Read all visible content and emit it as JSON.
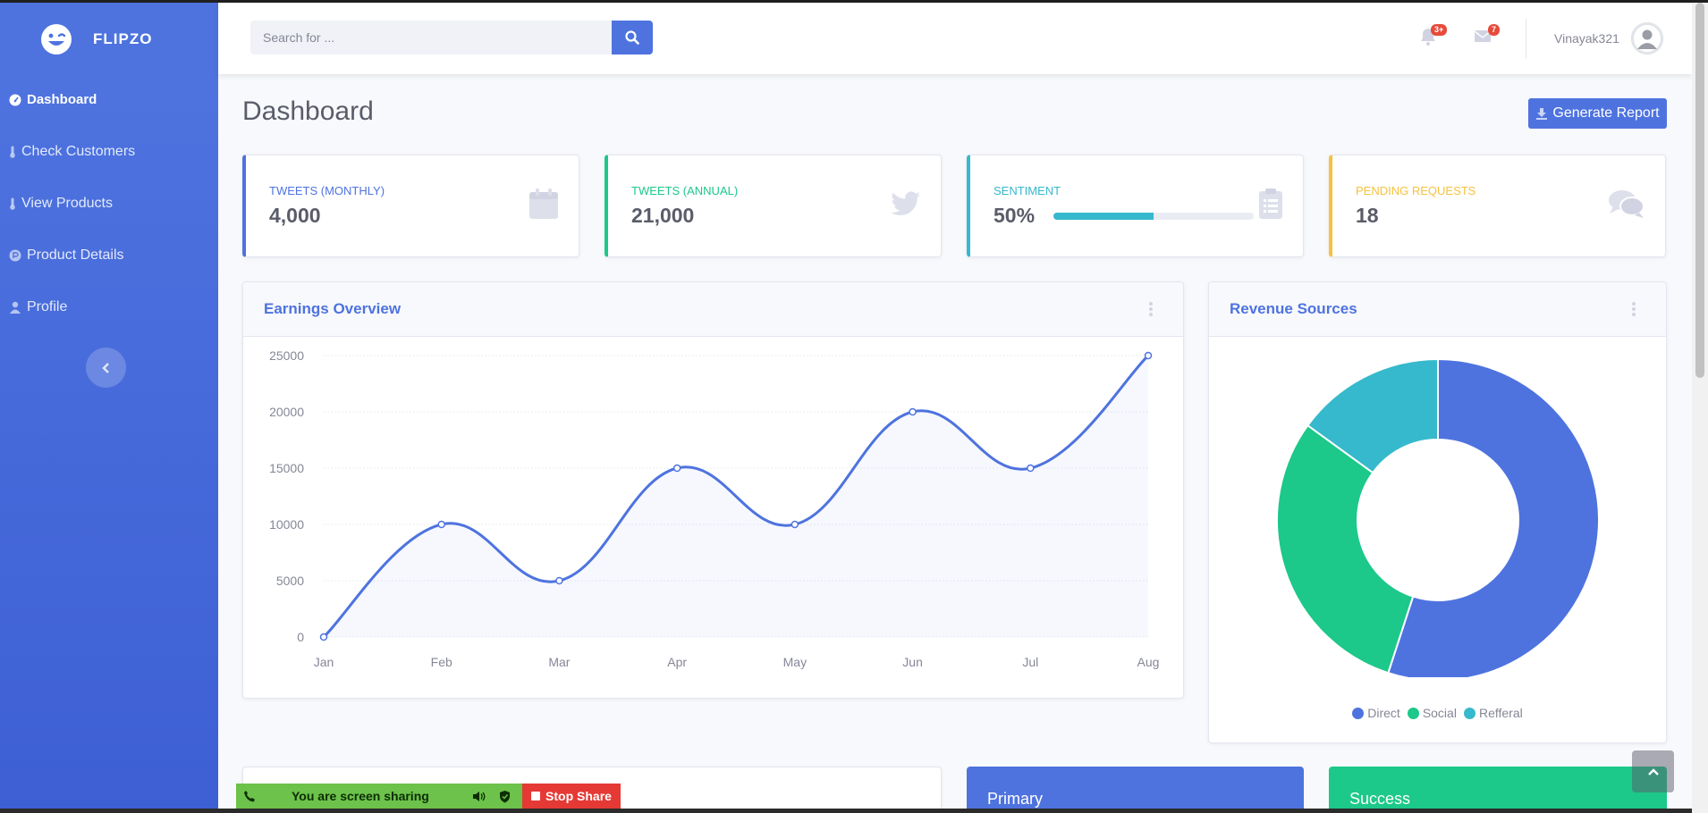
{
  "brand": {
    "name": "FLIPZO"
  },
  "sidebar": {
    "items": [
      {
        "label": "Dashboard",
        "icon": "tachometer-icon",
        "active": true
      },
      {
        "label": "Check Customers",
        "icon": "thermometer-icon"
      },
      {
        "label": "View Products",
        "icon": "thermometer-icon"
      },
      {
        "label": "Product Details",
        "icon": "product-hunt-icon"
      },
      {
        "label": "Profile",
        "icon": "user-icon"
      }
    ]
  },
  "topbar": {
    "search_placeholder": "Search for ...",
    "alerts_badge": "3+",
    "messages_badge": "7",
    "user_name": "Vinayak321"
  },
  "page": {
    "title": "Dashboard",
    "generate_report_label": "Generate Report"
  },
  "stats": [
    {
      "label": "TWEETS (MONTHLY)",
      "value": "4,000",
      "color": "#4e73df",
      "icon": "calendar-icon"
    },
    {
      "label": "TWEETS (ANNUAL)",
      "value": "21,000",
      "color": "#1cc88a",
      "icon": "twitter-icon"
    },
    {
      "label": "SENTIMENT",
      "value": "50%",
      "color": "#36b9cc",
      "icon": "clipboard-icon",
      "progress": 0.5
    },
    {
      "label": "PENDING REQUESTS",
      "value": "18",
      "color": "#f6c23e",
      "icon": "comments-icon"
    }
  ],
  "earnings": {
    "title": "Earnings Overview"
  },
  "revenue": {
    "title": "Revenue Sources"
  },
  "chart_data": [
    {
      "type": "area",
      "title": "Earnings Overview",
      "categories": [
        "Jan",
        "Feb",
        "Mar",
        "Apr",
        "May",
        "Jun",
        "Jul",
        "Aug"
      ],
      "values": [
        0,
        10000,
        5000,
        15000,
        10000,
        20000,
        15000,
        25000
      ],
      "yticks": [
        0,
        5000,
        10000,
        15000,
        20000,
        25000
      ],
      "ylim": [
        0,
        25000
      ],
      "grid": true,
      "color": "#4e73df"
    },
    {
      "type": "pie",
      "title": "Revenue Sources",
      "labels": [
        "Direct",
        "Social",
        "Refferal"
      ],
      "values": [
        55,
        30,
        15
      ],
      "colors": [
        "#4e73df",
        "#1cc88a",
        "#36b9cc"
      ],
      "legend": "bottom",
      "donut": true
    }
  ],
  "bottom_cards": [
    {
      "label": "Primary",
      "color": "#4e73df"
    },
    {
      "label": "Success",
      "color": "#1cc88a"
    }
  ],
  "screen_share": {
    "status": "You are screen sharing",
    "stop_label": "Stop Share"
  }
}
